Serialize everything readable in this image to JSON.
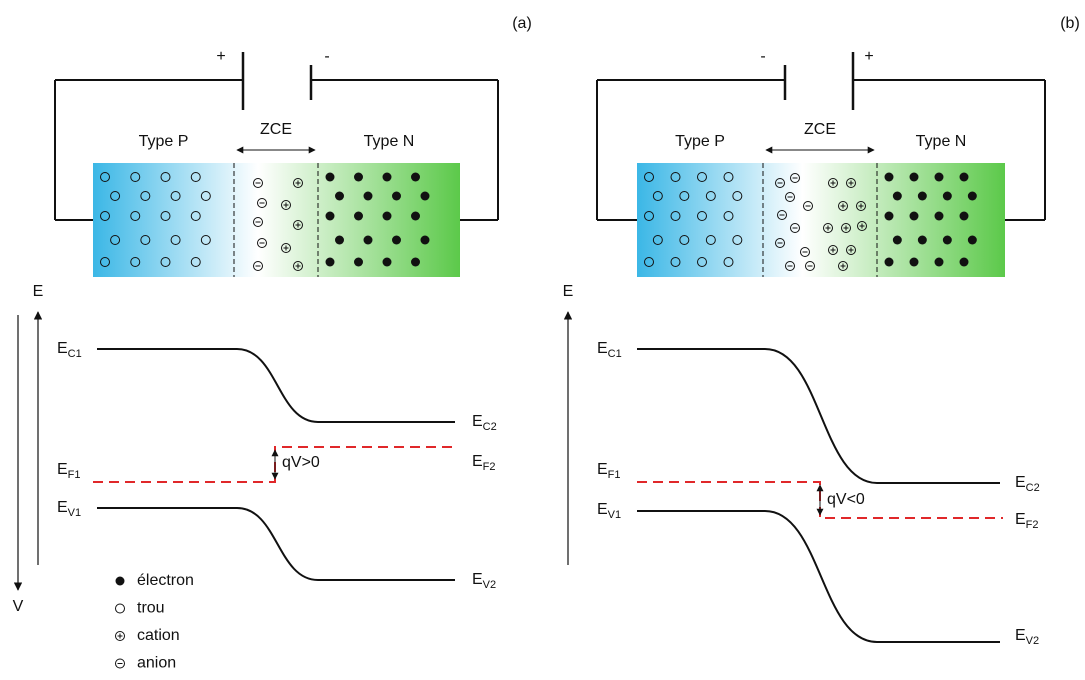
{
  "panels": [
    {
      "tag": "(a)",
      "battery": {
        "left": "+",
        "right": "-"
      },
      "regions": {
        "p": "Type P",
        "zce": "ZCE",
        "n": "Type N"
      },
      "axis": {
        "e": "E",
        "v": "V"
      },
      "levels": [
        {
          "main": "E",
          "sub": "C1"
        },
        {
          "main": "E",
          "sub": "C2"
        },
        {
          "main": "E",
          "sub": "F1"
        },
        {
          "main": "E",
          "sub": "F2"
        },
        {
          "main": "E",
          "sub": "V1"
        },
        {
          "main": "E",
          "sub": "V2"
        }
      ],
      "voltage": "qV>0"
    },
    {
      "tag": "(b)",
      "battery": {
        "left": "-",
        "right": "+"
      },
      "regions": {
        "p": "Type P",
        "zce": "ZCE",
        "n": "Type N"
      },
      "axis": {
        "e": "E"
      },
      "levels": [
        {
          "main": "E",
          "sub": "C1"
        },
        {
          "main": "E",
          "sub": "C2"
        },
        {
          "main": "E",
          "sub": "F1"
        },
        {
          "main": "E",
          "sub": "F2"
        },
        {
          "main": "E",
          "sub": "V1"
        },
        {
          "main": "E",
          "sub": "V2"
        }
      ],
      "voltage": "qV<0"
    }
  ],
  "legend": [
    "électron",
    "trou",
    "cation",
    "anion"
  ]
}
